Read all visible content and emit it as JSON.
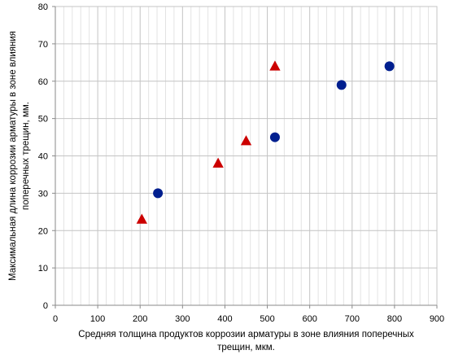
{
  "chart_data": {
    "type": "scatter",
    "title": "",
    "xlabel_lines": [
      "Средняя толщина продуктов коррозии арматуры в зоне влияния поперечных",
      "трещин, мкм."
    ],
    "ylabel_lines": [
      "Максимальная длина коррозии арматуры в зоне влияния",
      "поперечных трещин, мм."
    ],
    "xlim": [
      0,
      900
    ],
    "ylim": [
      0,
      80
    ],
    "x_ticks": [
      0,
      100,
      200,
      300,
      400,
      500,
      600,
      700,
      800,
      900
    ],
    "y_ticks": [
      0,
      10,
      20,
      30,
      40,
      50,
      60,
      70,
      80
    ],
    "x_tick_labels": [
      "0",
      "100",
      "200",
      "300",
      "400",
      "500",
      "600",
      "700",
      "800",
      "900"
    ],
    "y_tick_labels": [
      "0",
      "10",
      "20",
      "30",
      "40",
      "50",
      "60",
      "70",
      "80"
    ],
    "x_minor_step": 20,
    "y_major_step": 10,
    "grid": true,
    "legend": "none",
    "series": [
      {
        "marker": "circle",
        "color": "#001f8f",
        "x": [
          242,
          518,
          675,
          788
        ],
        "y": [
          30,
          45,
          59,
          64
        ]
      },
      {
        "marker": "triangle",
        "color": "#cc0000",
        "x": [
          204,
          384,
          450,
          518
        ],
        "y": [
          23,
          38,
          44,
          64
        ]
      }
    ]
  }
}
